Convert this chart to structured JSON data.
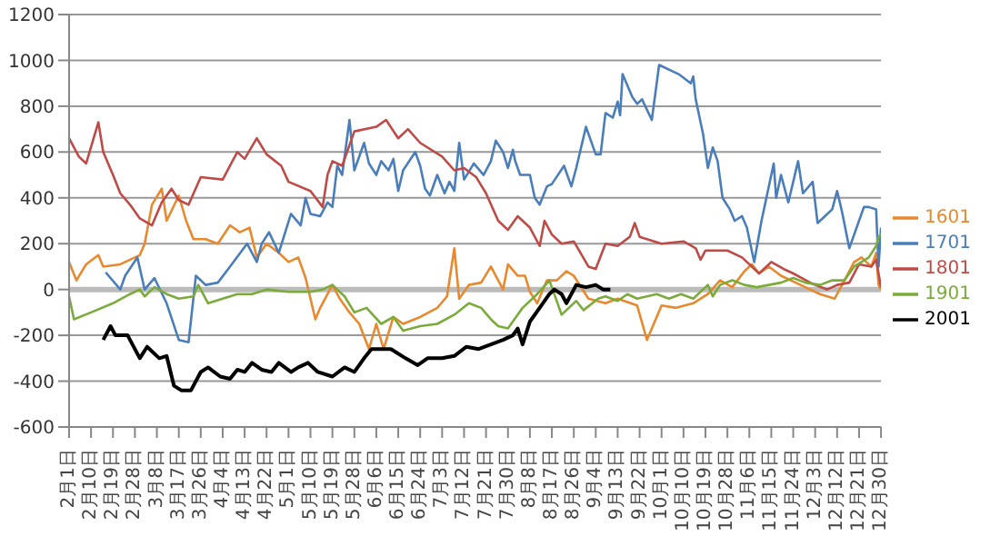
{
  "chart_data": {
    "type": "line",
    "legend": "right",
    "grid": "y",
    "marker": "none",
    "line_style": "solid",
    "xlim": [
      "--02-01",
      "--12-30"
    ],
    "xticks": [
      {
        "value": "--02-01",
        "label": "2月1日"
      },
      {
        "value": "--02-10",
        "label": "2月10日"
      },
      {
        "value": "--02-19",
        "label": "2月19日"
      },
      {
        "value": "--02-28",
        "label": "2月28日"
      },
      {
        "value": "--03-08",
        "label": "3月8日"
      },
      {
        "value": "--03-17",
        "label": "3月17日"
      },
      {
        "value": "--03-26",
        "label": "3月26日"
      },
      {
        "value": "--04-04",
        "label": "4月4日"
      },
      {
        "value": "--04-13",
        "label": "4月13日"
      },
      {
        "value": "--04-22",
        "label": "4月22日"
      },
      {
        "value": "--05-01",
        "label": "5月1日"
      },
      {
        "value": "--05-10",
        "label": "5月10日"
      },
      {
        "value": "--05-19",
        "label": "5月19日"
      },
      {
        "value": "--05-28",
        "label": "5月28日"
      },
      {
        "value": "--06-06",
        "label": "6月6日"
      },
      {
        "value": "--06-15",
        "label": "6月15日"
      },
      {
        "value": "--06-24",
        "label": "6月24日"
      },
      {
        "value": "--07-03",
        "label": "7月3日"
      },
      {
        "value": "--07-12",
        "label": "7月12日"
      },
      {
        "value": "--07-21",
        "label": "7月21日"
      },
      {
        "value": "--07-30",
        "label": "7月30日"
      },
      {
        "value": "--08-08",
        "label": "8月8日"
      },
      {
        "value": "--08-17",
        "label": "8月17日"
      },
      {
        "value": "--08-26",
        "label": "8月26日"
      },
      {
        "value": "--09-04",
        "label": "9月4日"
      },
      {
        "value": "--09-13",
        "label": "9月13日"
      },
      {
        "value": "--09-22",
        "label": "9月22日"
      },
      {
        "value": "--10-01",
        "label": "10月1日"
      },
      {
        "value": "--10-10",
        "label": "10月10日"
      },
      {
        "value": "--10-19",
        "label": "10月19日"
      },
      {
        "value": "--10-28",
        "label": "10月28日"
      },
      {
        "value": "--11-06",
        "label": "11月6日"
      },
      {
        "value": "--11-15",
        "label": "11月15日"
      },
      {
        "value": "--11-24",
        "label": "11月24日"
      },
      {
        "value": "--12-03",
        "label": "12月3日"
      },
      {
        "value": "--12-12",
        "label": "12月12日"
      },
      {
        "value": "--12-21",
        "label": "12月21日"
      },
      {
        "value": "--12-30",
        "label": "12月30日"
      }
    ],
    "ylim": [
      -600,
      1200
    ],
    "yticks": [
      -600,
      -400,
      -200,
      0,
      200,
      400,
      600,
      800,
      1000,
      1200
    ],
    "series": [
      {
        "name": "1601",
        "color": "#e8892f",
        "x": [
          "--02-01",
          "--02-04",
          "--02-08",
          "--02-13",
          "--02-15",
          "--02-22",
          "--03-01",
          "--03-03",
          "--03-06",
          "--03-10",
          "--03-12",
          "--03-17",
          "--03-20",
          "--03-23",
          "--03-28",
          "--04-02",
          "--04-07",
          "--04-11",
          "--04-15",
          "--04-18",
          "--04-22",
          "--04-27",
          "--05-01",
          "--05-05",
          "--05-08",
          "--05-12",
          "--05-14",
          "--05-19",
          "--05-22",
          "--05-26",
          "--05-30",
          "--06-03",
          "--06-06",
          "--06-09",
          "--06-13",
          "--06-17",
          "--06-24",
          "--07-01",
          "--07-05",
          "--07-08",
          "--07-10",
          "--07-14",
          "--07-19",
          "--07-23",
          "--07-25",
          "--07-28",
          "--07-30",
          "--08-03",
          "--08-06",
          "--08-08",
          "--08-11",
          "--08-15",
          "--08-19",
          "--08-23",
          "--08-26",
          "--09-01",
          "--09-08",
          "--09-13",
          "--09-21",
          "--09-25",
          "--10-01",
          "--10-07",
          "--10-14",
          "--10-20",
          "--10-25",
          "--10-30",
          "--11-04",
          "--11-07",
          "--11-10",
          "--11-14",
          "--11-19",
          "--11-27",
          "--12-05",
          "--12-11",
          "--12-15",
          "--12-19",
          "--12-22",
          "--12-26",
          "--12-28",
          "--12-29",
          "--12-30"
        ],
        "values": [
          120,
          40,
          110,
          150,
          100,
          110,
          150,
          200,
          370,
          440,
          300,
          410,
          300,
          220,
          220,
          200,
          280,
          250,
          270,
          140,
          200,
          160,
          120,
          140,
          50,
          -130,
          -80,
          20,
          -40,
          -100,
          -150,
          -260,
          -150,
          -260,
          -120,
          -150,
          -120,
          -80,
          -30,
          180,
          -40,
          20,
          30,
          100,
          60,
          0,
          110,
          60,
          60,
          -10,
          -60,
          40,
          40,
          80,
          60,
          -40,
          -60,
          -40,
          -70,
          -220,
          -70,
          -80,
          -60,
          -20,
          40,
          10,
          80,
          110,
          70,
          100,
          60,
          20,
          -20,
          -40,
          40,
          120,
          140,
          100,
          160,
          20,
          0
        ]
      },
      {
        "name": "1701",
        "color": "#4a7ebb",
        "x": [
          "--02-16",
          "--02-22",
          "--02-24",
          "--02-29",
          "--03-03",
          "--03-07",
          "--03-12",
          "--03-17",
          "--03-21",
          "--03-24",
          "--03-28",
          "--04-02",
          "--04-07",
          "--04-14",
          "--04-18",
          "--04-20",
          "--04-23",
          "--04-27",
          "--05-02",
          "--05-06",
          "--05-08",
          "--05-10",
          "--05-14",
          "--05-17",
          "--05-19",
          "--05-21",
          "--05-23",
          "--05-26",
          "--05-28",
          "--06-01",
          "--06-03",
          "--06-06",
          "--06-08",
          "--06-11",
          "--06-13",
          "--06-15",
          "--06-17",
          "--06-22",
          "--06-24",
          "--06-26",
          "--06-28",
          "--07-01",
          "--07-04",
          "--07-06",
          "--07-08",
          "--07-10",
          "--07-12",
          "--07-16",
          "--07-20",
          "--07-23",
          "--07-25",
          "--07-28",
          "--07-30",
          "--08-01",
          "--08-02",
          "--08-04",
          "--08-08",
          "--08-10",
          "--08-12",
          "--08-15",
          "--08-17",
          "--08-22",
          "--08-25",
          "--08-27",
          "--08-31",
          "--09-04",
          "--09-06",
          "--09-08",
          "--09-11",
          "--09-13",
          "--09-14",
          "--09-15",
          "--09-19",
          "--09-21",
          "--09-23",
          "--09-27",
          "--09-30",
          "--10-08",
          "--10-13",
          "--10-14",
          "--10-15",
          "--10-18",
          "--10-20",
          "--10-22",
          "--10-24",
          "--10-26",
          "--10-29",
          "--10-31",
          "--11-03",
          "--11-05",
          "--11-08",
          "--11-11",
          "--11-16",
          "--11-17",
          "--11-19",
          "--11-22",
          "--11-26",
          "--11-28",
          "--12-02",
          "--12-04",
          "--12-07",
          "--12-10",
          "--12-12",
          "--12-14",
          "--12-17",
          "--12-23",
          "--12-25",
          "--12-28",
          "--12-29",
          "--12-30"
        ],
        "values": [
          75,
          0,
          60,
          140,
          0,
          50,
          -60,
          -220,
          -230,
          60,
          20,
          30,
          100,
          200,
          120,
          200,
          250,
          160,
          330,
          280,
          400,
          330,
          320,
          380,
          360,
          540,
          500,
          740,
          520,
          640,
          550,
          500,
          560,
          520,
          570,
          430,
          520,
          600,
          540,
          440,
          410,
          500,
          420,
          470,
          430,
          640,
          480,
          550,
          500,
          560,
          650,
          600,
          530,
          610,
          560,
          500,
          500,
          400,
          370,
          450,
          460,
          540,
          450,
          530,
          710,
          590,
          590,
          770,
          750,
          820,
          760,
          940,
          840,
          810,
          830,
          740,
          980,
          940,
          900,
          930,
          830,
          680,
          530,
          620,
          560,
          400,
          350,
          300,
          320,
          270,
          120,
          300,
          550,
          400,
          500,
          380,
          560,
          420,
          470,
          290,
          320,
          350,
          430,
          340,
          180,
          360,
          360,
          350,
          100,
          270
        ]
      },
      {
        "name": "1801",
        "color": "#be4b48",
        "x": [
          "--02-01",
          "--02-05",
          "--02-08",
          "--02-13",
          "--02-15",
          "--02-19",
          "--02-22",
          "--02-26",
          "--03-01",
          "--03-06",
          "--03-10",
          "--03-14",
          "--03-17",
          "--03-21",
          "--03-26",
          "--04-04",
          "--04-10",
          "--04-13",
          "--04-18",
          "--04-22",
          "--04-28",
          "--05-01",
          "--05-10",
          "--05-15",
          "--05-17",
          "--05-19",
          "--05-23",
          "--05-28",
          "--06-06",
          "--06-10",
          "--06-15",
          "--06-19",
          "--06-24",
          "--07-03",
          "--07-08",
          "--07-12",
          "--07-17",
          "--07-21",
          "--07-26",
          "--07-30",
          "--08-03",
          "--08-08",
          "--08-12",
          "--08-14",
          "--08-17",
          "--08-21",
          "--08-26",
          "--09-01",
          "--09-04",
          "--09-08",
          "--09-13",
          "--09-18",
          "--09-20",
          "--09-22",
          "--10-01",
          "--10-10",
          "--10-15",
          "--10-17",
          "--10-19",
          "--10-28",
          "--11-03",
          "--11-06",
          "--11-10",
          "--11-15",
          "--11-20",
          "--11-24",
          "--12-01",
          "--12-03",
          "--12-08",
          "--12-12",
          "--12-17",
          "--12-21",
          "--12-26",
          "--12-28",
          "--12-30"
        ],
        "values": [
          660,
          580,
          550,
          730,
          600,
          500,
          420,
          370,
          310,
          280,
          380,
          440,
          390,
          370,
          490,
          480,
          600,
          570,
          660,
          590,
          540,
          470,
          430,
          360,
          500,
          560,
          540,
          690,
          710,
          740,
          660,
          700,
          640,
          580,
          520,
          530,
          490,
          420,
          300,
          260,
          320,
          270,
          190,
          300,
          240,
          200,
          210,
          100,
          90,
          200,
          190,
          230,
          290,
          230,
          200,
          210,
          180,
          130,
          170,
          170,
          140,
          110,
          70,
          120,
          90,
          70,
          30,
          20,
          0,
          20,
          30,
          110,
          100,
          130,
          10
        ]
      },
      {
        "name": "1901",
        "color": "#7aab3b",
        "x": [
          "--02-01",
          "--02-03",
          "--02-10",
          "--02-19",
          "--02-26",
          "--03-01",
          "--03-03",
          "--03-07",
          "--03-12",
          "--03-17",
          "--03-23",
          "--03-25",
          "--03-29",
          "--04-04",
          "--04-10",
          "--04-16",
          "--04-22",
          "--05-01",
          "--05-10",
          "--05-15",
          "--05-19",
          "--05-24",
          "--05-28",
          "--06-02",
          "--06-08",
          "--06-13",
          "--06-17",
          "--06-24",
          "--07-01",
          "--07-08",
          "--07-14",
          "--07-19",
          "--07-23",
          "--07-26",
          "--07-30",
          "--08-05",
          "--08-11",
          "--08-16",
          "--08-21",
          "--08-27",
          "--08-30",
          "--09-05",
          "--09-08",
          "--09-13",
          "--09-17",
          "--09-21",
          "--09-29",
          "--10-04",
          "--10-09",
          "--10-14",
          "--10-20",
          "--10-22",
          "--10-25",
          "--10-30",
          "--11-04",
          "--11-09",
          "--11-14",
          "--11-19",
          "--11-24",
          "--11-29",
          "--12-05",
          "--12-10",
          "--12-15",
          "--12-19",
          "--12-25",
          "--12-28",
          "--12-29",
          "--12-30"
        ],
        "values": [
          -30,
          -130,
          -100,
          -60,
          -20,
          0,
          -30,
          10,
          -20,
          -40,
          -30,
          20,
          -60,
          -40,
          -20,
          -20,
          0,
          -10,
          -10,
          0,
          20,
          -30,
          -100,
          -80,
          -150,
          -120,
          -180,
          -160,
          -150,
          -110,
          -60,
          -80,
          -130,
          -160,
          -170,
          -80,
          -20,
          40,
          -110,
          -50,
          -90,
          -40,
          -30,
          -50,
          -20,
          -40,
          -20,
          -40,
          -20,
          -40,
          20,
          -30,
          20,
          40,
          20,
          10,
          20,
          30,
          50,
          30,
          20,
          40,
          40,
          100,
          140,
          190,
          230,
          240
        ]
      },
      {
        "name": "2001",
        "color": "#000000",
        "x": [
          "--02-15",
          "--02-18",
          "--02-20",
          "--02-25",
          "--03-01",
          "--03-04",
          "--03-09",
          "--03-12",
          "--03-15",
          "--03-18",
          "--03-22",
          "--03-26",
          "--03-29",
          "--04-03",
          "--04-07",
          "--04-10",
          "--04-13",
          "--04-16",
          "--04-20",
          "--04-24",
          "--04-27",
          "--05-02",
          "--05-05",
          "--05-09",
          "--05-13",
          "--05-19",
          "--05-24",
          "--05-28",
          "--06-01",
          "--06-04",
          "--06-07",
          "--06-12",
          "--06-18",
          "--06-23",
          "--06-27",
          "--07-03",
          "--07-08",
          "--07-13",
          "--07-18",
          "--07-23",
          "--07-28",
          "--08-01",
          "--08-03",
          "--08-05",
          "--08-08",
          "--08-12",
          "--08-16",
          "--08-18",
          "--08-21",
          "--08-23",
          "--08-27",
          "--08-31",
          "--09-04",
          "--09-07",
          "--09-10"
        ],
        "values": [
          -220,
          -160,
          -200,
          -200,
          -300,
          -250,
          -300,
          -290,
          -420,
          -440,
          -440,
          -360,
          -340,
          -380,
          -390,
          -350,
          -360,
          -320,
          -350,
          -360,
          -320,
          -360,
          -340,
          -320,
          -360,
          -380,
          -340,
          -360,
          -300,
          -260,
          -260,
          -260,
          -300,
          -330,
          -300,
          -300,
          -290,
          -250,
          -260,
          -240,
          -220,
          -200,
          -170,
          -240,
          -140,
          -80,
          -20,
          0,
          -20,
          -60,
          20,
          10,
          20,
          0,
          0
        ]
      }
    ]
  }
}
